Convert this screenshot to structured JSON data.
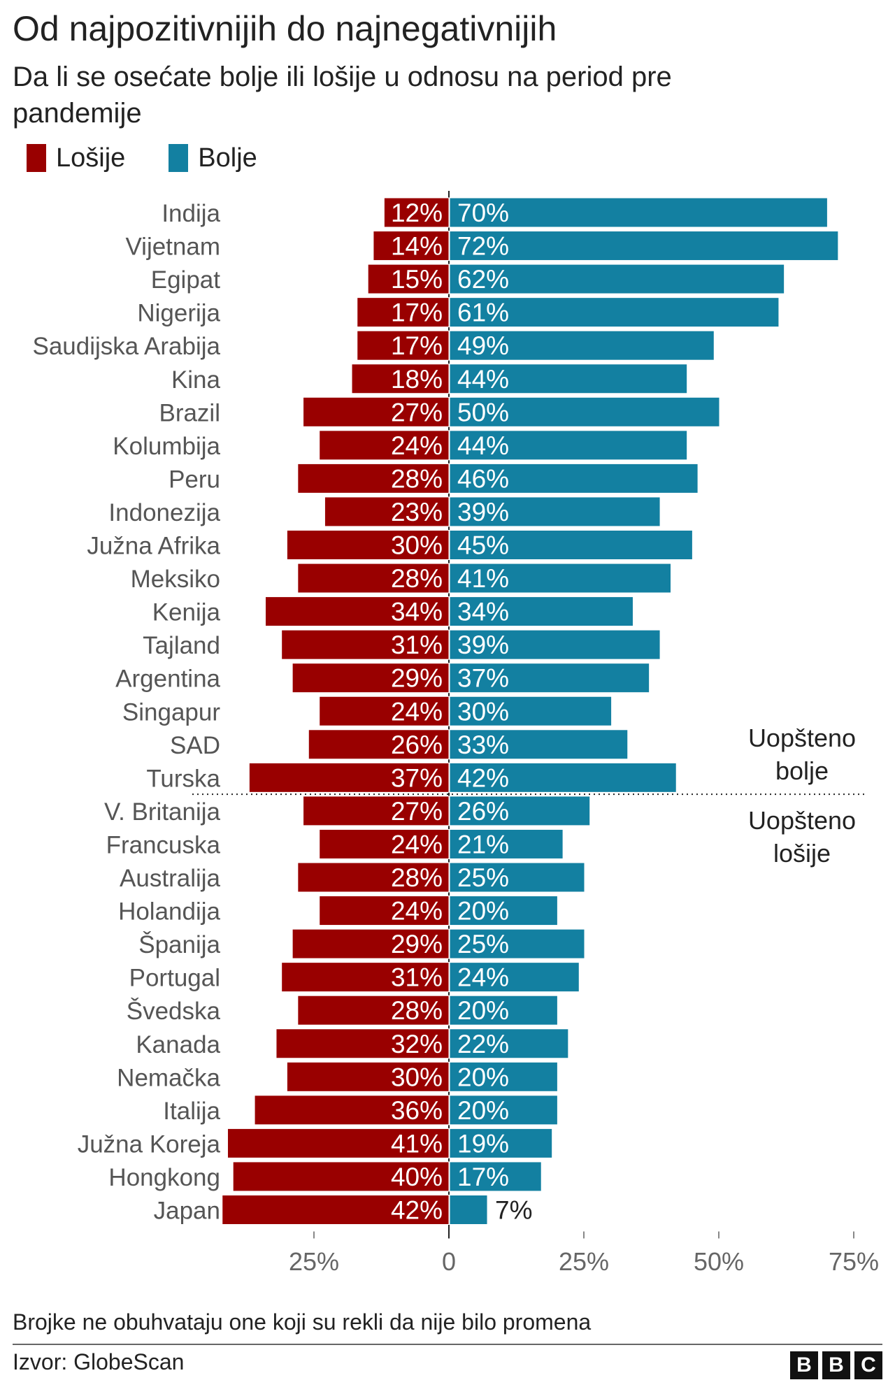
{
  "chart_data": {
    "type": "bar",
    "orientation": "horizontal-diverging",
    "title": "Od najpozitivnijih do najnegativnijih",
    "subtitle": "Da li se osećate bolje ili lošije u odnosu na period pre pandemije",
    "series": [
      {
        "name": "Lošije",
        "color": "#990000",
        "values": [
          12,
          14,
          15,
          17,
          17,
          18,
          27,
          24,
          28,
          23,
          30,
          28,
          34,
          31,
          29,
          24,
          26,
          37,
          27,
          24,
          28,
          24,
          29,
          31,
          28,
          32,
          30,
          36,
          41,
          40,
          42
        ]
      },
      {
        "name": "Bolje",
        "color": "#1380A1",
        "values": [
          70,
          72,
          62,
          61,
          49,
          44,
          50,
          44,
          46,
          39,
          45,
          41,
          34,
          39,
          37,
          30,
          33,
          42,
          26,
          21,
          25,
          20,
          25,
          24,
          20,
          22,
          20,
          20,
          19,
          17,
          7
        ]
      }
    ],
    "categories": [
      "Indija",
      "Vijetnam",
      "Egipat",
      "Nigerija",
      "Saudijska Arabija",
      "Kina",
      "Brazil",
      "Kolumbija",
      "Peru",
      "Indonezija",
      "Južna Afrika",
      "Meksiko",
      "Kenija",
      "Tajland",
      "Argentina",
      "Singapur",
      "SAD",
      "Turska",
      "V. Britanija",
      "Francuska",
      "Australija",
      "Holandija",
      "Španija",
      "Portugal",
      "Švedska",
      "Kanada",
      "Nemačka",
      "Italija",
      "Južna Koreja",
      "Hongkong",
      "Japan"
    ],
    "x_ticks": [
      "25%",
      "0",
      "25%",
      "50%",
      "75%"
    ],
    "x_tick_values": [
      -25,
      0,
      25,
      50,
      75
    ],
    "xlim": [
      -42,
      76
    ],
    "divider_after_index": 17,
    "annotations": {
      "above": "Uopšteno bolje",
      "below": "Uopšteno lošije"
    }
  },
  "legend": [
    {
      "label": "Lošije",
      "color": "#990000"
    },
    {
      "label": "Bolje",
      "color": "#1380A1"
    }
  ],
  "footer": {
    "note": "Brojke ne obuhvataju one koji su rekli da nije bilo promena",
    "source": "Izvor: GlobeScan",
    "logo_letters": [
      "B",
      "B",
      "C"
    ]
  }
}
